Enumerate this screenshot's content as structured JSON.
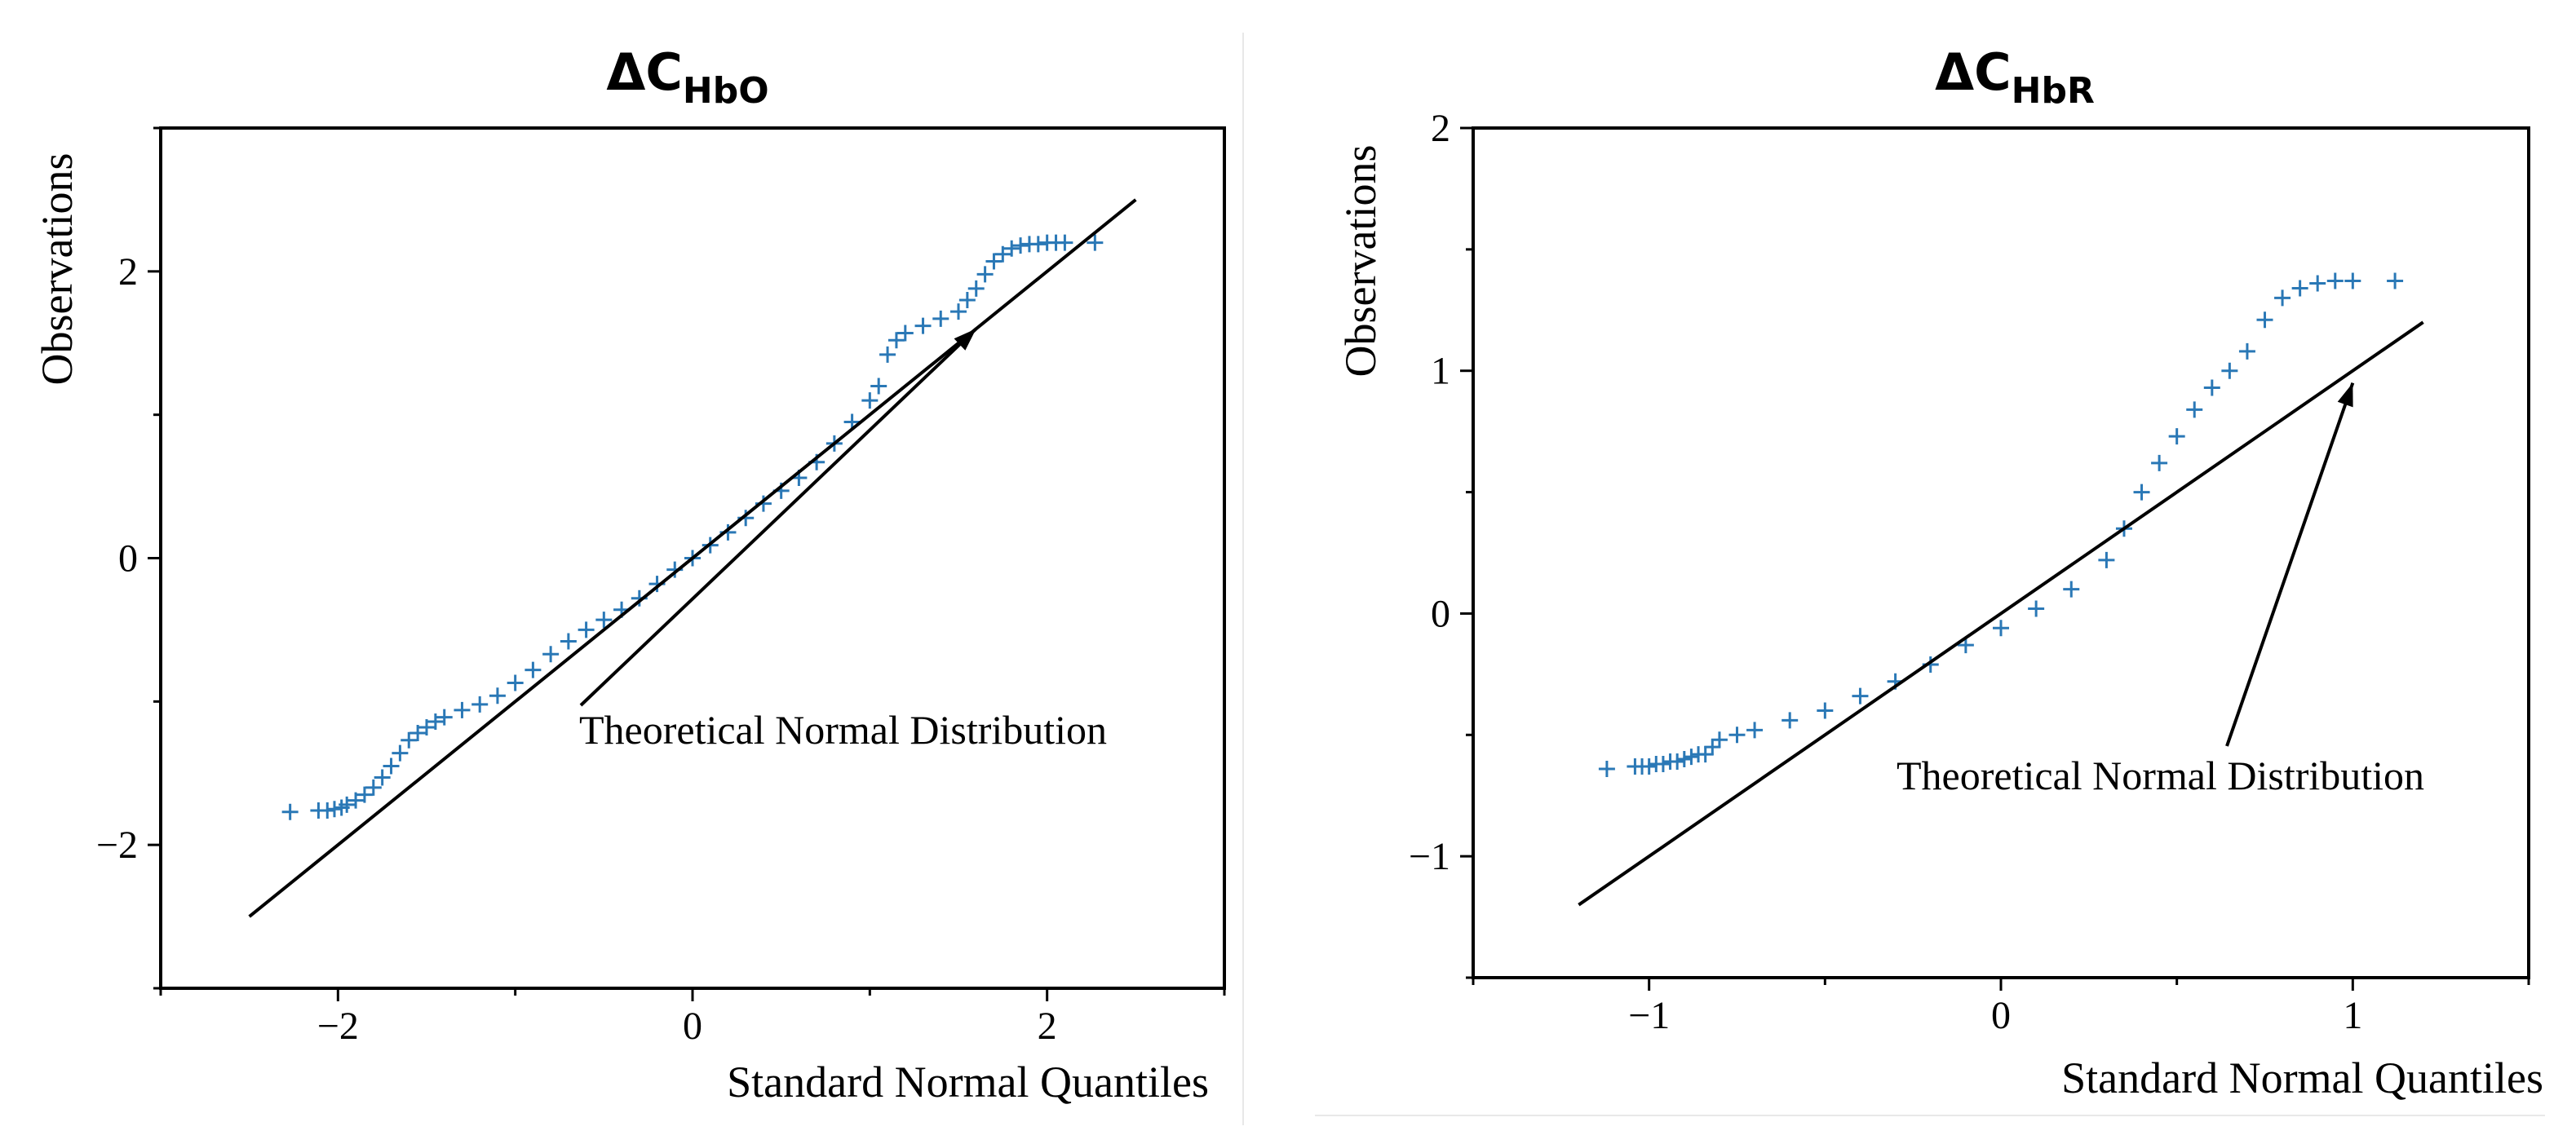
{
  "chart_data": [
    {
      "type": "scatter",
      "subtype": "qq-plot",
      "title": {
        "prefix": "ΔC",
        "subscript": "HbO"
      },
      "xlabel": "Standard Normal Quantiles",
      "ylabel": "Observations",
      "xlim": [
        -3,
        3
      ],
      "ylim": [
        -3,
        3
      ],
      "xticks": [
        -2,
        0,
        2
      ],
      "xtick_labels": [
        "−2",
        "0",
        "2"
      ],
      "yticks": [
        -2,
        0,
        2
      ],
      "ytick_labels": [
        "−2",
        "0",
        "2"
      ],
      "minor_ticks": true,
      "reference_line": {
        "x": [
          -2.5,
          2.5
        ],
        "y": [
          -2.5,
          2.5
        ]
      },
      "annotation": {
        "text": "Theoretical Normal Distribution",
        "arrow_to": {
          "x": 1.6,
          "y": 1.6
        }
      },
      "marker": "+",
      "marker_color": "#2a78b6",
      "series": [
        {
          "name": "Observations",
          "x": [
            -2.27,
            -2.11,
            -2.06,
            -2.02,
            -1.98,
            -1.95,
            -1.9,
            -1.85,
            -1.8,
            -1.75,
            -1.7,
            -1.65,
            -1.6,
            -1.55,
            -1.5,
            -1.45,
            -1.4,
            -1.3,
            -1.2,
            -1.1,
            -1.0,
            -0.9,
            -0.8,
            -0.7,
            -0.6,
            -0.5,
            -0.4,
            -0.3,
            -0.2,
            -0.1,
            0.0,
            0.1,
            0.2,
            0.3,
            0.4,
            0.5,
            0.6,
            0.7,
            0.8,
            0.9,
            1.0,
            1.05,
            1.1,
            1.15,
            1.2,
            1.3,
            1.4,
            1.5,
            1.55,
            1.6,
            1.65,
            1.7,
            1.75,
            1.8,
            1.85,
            1.9,
            1.95,
            2.0,
            2.05,
            2.1,
            2.27
          ],
          "y": [
            -1.77,
            -1.76,
            -1.76,
            -1.75,
            -1.74,
            -1.72,
            -1.69,
            -1.65,
            -1.6,
            -1.53,
            -1.45,
            -1.36,
            -1.27,
            -1.22,
            -1.18,
            -1.14,
            -1.11,
            -1.06,
            -1.02,
            -0.96,
            -0.87,
            -0.78,
            -0.67,
            -0.58,
            -0.5,
            -0.43,
            -0.36,
            -0.28,
            -0.18,
            -0.08,
            0.0,
            0.09,
            0.18,
            0.28,
            0.38,
            0.47,
            0.56,
            0.67,
            0.8,
            0.95,
            1.1,
            1.2,
            1.42,
            1.52,
            1.57,
            1.62,
            1.67,
            1.72,
            1.8,
            1.88,
            1.98,
            2.07,
            2.12,
            2.16,
            2.18,
            2.19,
            2.19,
            2.2,
            2.2,
            2.2,
            2.2
          ]
        }
      ]
    },
    {
      "type": "scatter",
      "subtype": "qq-plot",
      "title": {
        "prefix": "ΔC",
        "subscript": "HbR"
      },
      "xlabel": "Standard Normal Quantiles",
      "ylabel": "Observations",
      "xlim": [
        -1.5,
        1.5
      ],
      "ylim": [
        -1.5,
        2
      ],
      "xticks": [
        -1,
        0,
        1
      ],
      "xtick_labels": [
        "−1",
        "0",
        "1"
      ],
      "yticks": [
        -1,
        0,
        1,
        2
      ],
      "ytick_labels": [
        "−1",
        "0",
        "1",
        "2"
      ],
      "minor_ticks": true,
      "reference_line": {
        "x": [
          -1.2,
          1.2
        ],
        "y": [
          -1.2,
          1.2
        ]
      },
      "annotation": {
        "text": "Theoretical Normal Distribution",
        "arrow_to": {
          "x": 1.0,
          "y": 0.95
        }
      },
      "marker": "+",
      "marker_color": "#2a78b6",
      "series": [
        {
          "name": "Observations",
          "x": [
            -1.12,
            -1.04,
            -1.02,
            -1.0,
            -0.98,
            -0.96,
            -0.94,
            -0.92,
            -0.9,
            -0.88,
            -0.86,
            -0.84,
            -0.82,
            -0.8,
            -0.75,
            -0.7,
            -0.6,
            -0.5,
            -0.4,
            -0.3,
            -0.2,
            -0.1,
            0.0,
            0.1,
            0.2,
            0.3,
            0.35,
            0.4,
            0.45,
            0.5,
            0.55,
            0.6,
            0.65,
            0.7,
            0.75,
            0.8,
            0.85,
            0.9,
            0.95,
            1.0,
            1.12
          ],
          "y": [
            -0.64,
            -0.63,
            -0.63,
            -0.63,
            -0.62,
            -0.62,
            -0.61,
            -0.61,
            -0.6,
            -0.59,
            -0.58,
            -0.58,
            -0.55,
            -0.52,
            -0.5,
            -0.48,
            -0.44,
            -0.4,
            -0.34,
            -0.28,
            -0.21,
            -0.13,
            -0.06,
            0.02,
            0.1,
            0.22,
            0.35,
            0.5,
            0.62,
            0.73,
            0.84,
            0.93,
            1.0,
            1.08,
            1.21,
            1.3,
            1.34,
            1.36,
            1.37,
            1.37,
            1.37
          ]
        }
      ]
    }
  ]
}
